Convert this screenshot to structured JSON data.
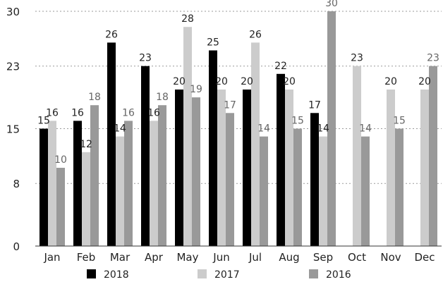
{
  "chart_data": {
    "type": "bar",
    "title": "",
    "xlabel": "",
    "ylabel": "",
    "categories": [
      "Jan",
      "Feb",
      "Mar",
      "Apr",
      "May",
      "Jun",
      "Jul",
      "Aug",
      "Sep",
      "Oct",
      "Nov",
      "Dec"
    ],
    "series": [
      {
        "name": "2018",
        "color": "#000000",
        "label_color": "#222222",
        "values": [
          15,
          16,
          26,
          23,
          20,
          25,
          20,
          22,
          17,
          null,
          null,
          null
        ]
      },
      {
        "name": "2017",
        "color": "#cccccc",
        "label_color": "#222222",
        "values": [
          16,
          12,
          14,
          16,
          28,
          20,
          26,
          20,
          14,
          23,
          20,
          20
        ]
      },
      {
        "name": "2016",
        "color": "#999999",
        "label_color": "#666666",
        "values": [
          10,
          18,
          16,
          18,
          19,
          17,
          14,
          15,
          30,
          14,
          15,
          23
        ]
      }
    ],
    "yticks": [
      0,
      8,
      15,
      23,
      30
    ],
    "ylim": [
      0,
      30
    ],
    "grid": true,
    "legend": "bottom"
  }
}
